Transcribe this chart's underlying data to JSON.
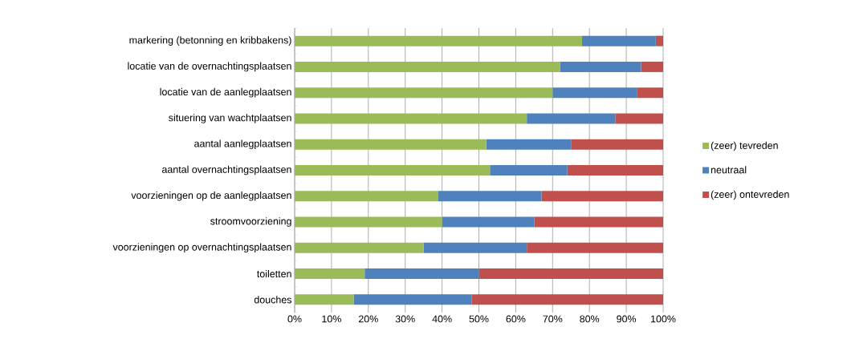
{
  "chart_data": {
    "type": "bar",
    "orientation": "horizontal",
    "stacked": true,
    "categories": [
      "markering (betonning en kribbakens)",
      "locatie van de overnachtingsplaatsen",
      "locatie van de aanlegplaatsen",
      "situering van wachtplaatsen",
      "aantal aanlegplaatsen",
      "aantal overnachtingsplaatsen",
      "voorzieningen op de aanlegplaatsen",
      "stroomvoorziening",
      "voorzieningen op overnachtingsplaatsen",
      "toiletten",
      "douches"
    ],
    "series": [
      {
        "name": "(zeer) tevreden",
        "color": "#9bbb59",
        "values": [
          78,
          72,
          70,
          63,
          52,
          53,
          39,
          40,
          35,
          19,
          16
        ]
      },
      {
        "name": "neutraal",
        "color": "#4f81bd",
        "values": [
          20,
          22,
          23,
          24,
          23,
          21,
          28,
          25,
          28,
          31,
          32
        ]
      },
      {
        "name": "(zeer) ontevreden",
        "color": "#c0504d",
        "values": [
          2,
          6,
          7,
          13,
          25,
          26,
          33,
          35,
          37,
          50,
          52
        ]
      }
    ],
    "xlim": [
      0,
      100
    ],
    "xticks": [
      {
        "value": 0,
        "label": "0%"
      },
      {
        "value": 10,
        "label": "10%"
      },
      {
        "value": 20,
        "label": "20%"
      },
      {
        "value": 30,
        "label": "30%"
      },
      {
        "value": 40,
        "label": "40%"
      },
      {
        "value": 50,
        "label": "50%"
      },
      {
        "value": 60,
        "label": "60%"
      },
      {
        "value": 70,
        "label": "70%"
      },
      {
        "value": 80,
        "label": "80%"
      },
      {
        "value": 90,
        "label": "90%"
      },
      {
        "value": 100,
        "label": "100%"
      }
    ],
    "grid": "x",
    "legend": "right"
  }
}
